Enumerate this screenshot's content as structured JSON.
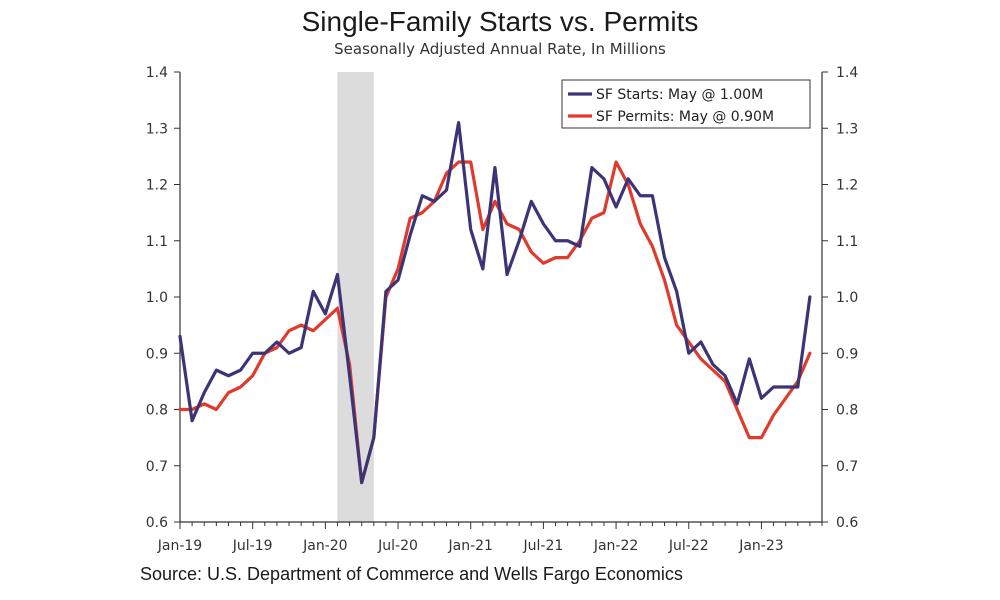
{
  "chart_data": {
    "type": "line",
    "title": "Single-Family Starts vs. Permits",
    "subtitle": "Seasonally Adjusted Annual Rate, In Millions",
    "source": "Source: U.S. Department of Commerce and Wells Fargo Economics",
    "x": [
      "2019-01",
      "2019-02",
      "2019-03",
      "2019-04",
      "2019-05",
      "2019-06",
      "2019-07",
      "2019-08",
      "2019-09",
      "2019-10",
      "2019-11",
      "2019-12",
      "2020-01",
      "2020-02",
      "2020-03",
      "2020-04",
      "2020-05",
      "2020-06",
      "2020-07",
      "2020-08",
      "2020-09",
      "2020-10",
      "2020-11",
      "2020-12",
      "2021-01",
      "2021-02",
      "2021-03",
      "2021-04",
      "2021-05",
      "2021-06",
      "2021-07",
      "2021-08",
      "2021-09",
      "2021-10",
      "2021-11",
      "2021-12",
      "2022-01",
      "2022-02",
      "2022-03",
      "2022-04",
      "2022-05",
      "2022-06",
      "2022-07",
      "2022-08",
      "2022-09",
      "2022-10",
      "2022-11",
      "2022-12",
      "2023-01",
      "2023-02",
      "2023-03",
      "2023-04",
      "2023-05"
    ],
    "x_tick_labels": [
      "Jan-19",
      "Jul-19",
      "Jan-20",
      "Jul-20",
      "Jan-21",
      "Jul-21",
      "Jan-22",
      "Jul-22",
      "Jan-23"
    ],
    "y_tick_labels": [
      "0.6",
      "0.7",
      "0.8",
      "0.9",
      "1.0",
      "1.1",
      "1.2",
      "1.3",
      "1.4"
    ],
    "ylim": [
      0.6,
      1.4
    ],
    "recession_shade": [
      "2020-02",
      "2020-04"
    ],
    "series": [
      {
        "name": "SF Starts: May @ 1.00M",
        "color": "#3b3477",
        "values": [
          0.93,
          0.78,
          0.83,
          0.87,
          0.86,
          0.87,
          0.9,
          0.9,
          0.92,
          0.9,
          0.91,
          1.01,
          0.97,
          1.04,
          0.86,
          0.67,
          0.75,
          1.01,
          1.03,
          1.11,
          1.18,
          1.17,
          1.19,
          1.31,
          1.12,
          1.05,
          1.23,
          1.04,
          1.1,
          1.17,
          1.13,
          1.1,
          1.1,
          1.09,
          1.23,
          1.21,
          1.16,
          1.21,
          1.18,
          1.18,
          1.07,
          1.01,
          0.9,
          0.92,
          0.88,
          0.86,
          0.81,
          0.89,
          0.82,
          0.84,
          0.84,
          0.84,
          1.0
        ]
      },
      {
        "name": "SF Permits: May @ 0.90M",
        "color": "#e03a2d",
        "values": [
          0.8,
          0.8,
          0.81,
          0.8,
          0.83,
          0.84,
          0.86,
          0.9,
          0.91,
          0.94,
          0.95,
          0.94,
          0.96,
          0.98,
          0.88,
          0.67,
          0.75,
          1.0,
          1.05,
          1.14,
          1.15,
          1.17,
          1.22,
          1.24,
          1.24,
          1.12,
          1.17,
          1.13,
          1.12,
          1.08,
          1.06,
          1.07,
          1.07,
          1.1,
          1.14,
          1.15,
          1.24,
          1.2,
          1.13,
          1.09,
          1.03,
          0.95,
          0.92,
          0.89,
          0.87,
          0.85,
          0.8,
          0.75,
          0.75,
          0.79,
          0.82,
          0.85,
          0.9
        ]
      }
    ],
    "legend_position": "top-right",
    "grid": false
  }
}
